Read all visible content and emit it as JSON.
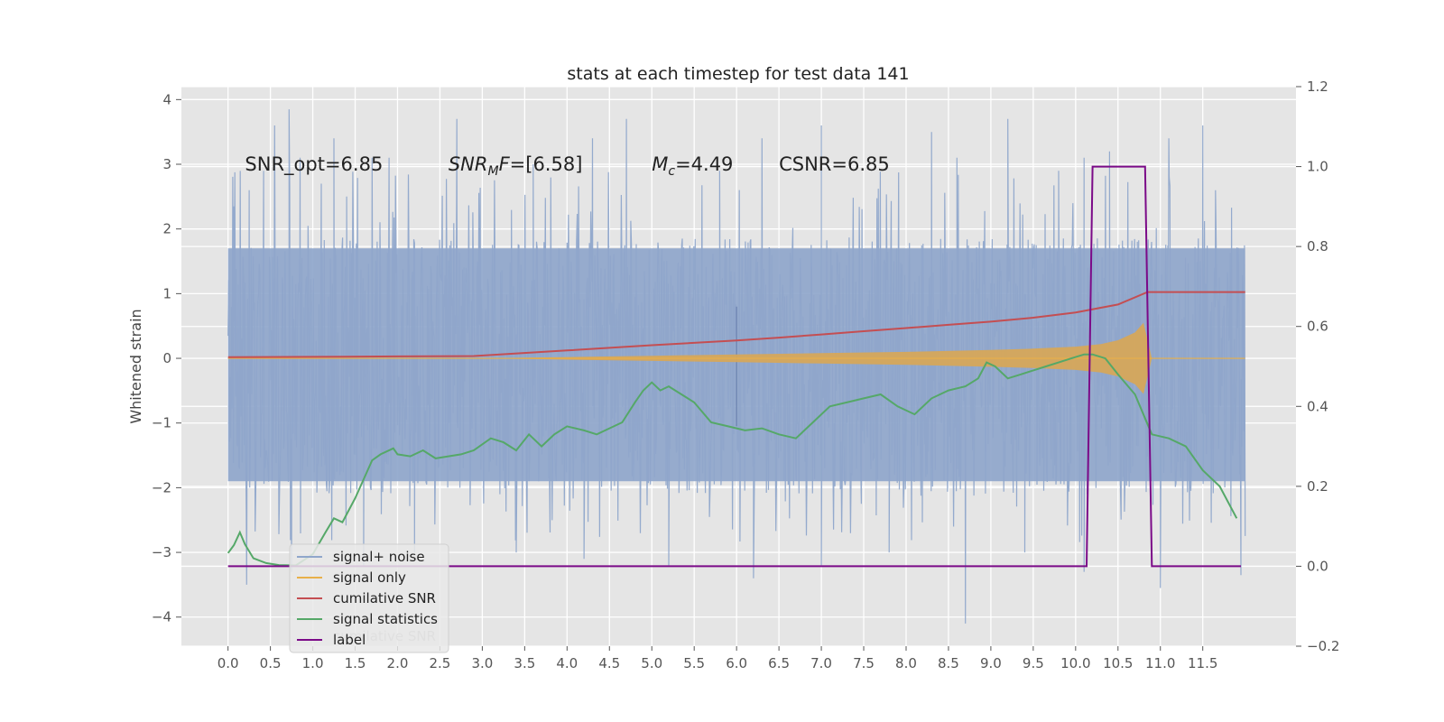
{
  "chart_data": {
    "type": "line",
    "title": "stats at each timestep for test data 141",
    "ylabel": "Whitened strain",
    "xlabel": "",
    "x_range": [
      -0.55,
      12.6
    ],
    "x_ticks": [
      0.0,
      0.5,
      1.0,
      1.5,
      2.0,
      2.5,
      3.0,
      3.5,
      4.0,
      4.5,
      5.0,
      5.5,
      6.0,
      6.5,
      7.0,
      7.5,
      8.0,
      8.5,
      9.0,
      9.5,
      10.0,
      10.5,
      11.0,
      11.5
    ],
    "x_tick_labels": [
      "0.0",
      "0.5",
      "1.0",
      "1.5",
      "2.0",
      "2.5",
      "3.0",
      "3.5",
      "4.0",
      "4.5",
      "5.0",
      "5.5",
      "6.0",
      "6.5",
      "7.0",
      "7.5",
      "8.0",
      "8.5",
      "9.0",
      "9.5",
      "10.0",
      "10.5",
      "11.0",
      "11.5"
    ],
    "y_left_range": [
      -4.45,
      4.2
    ],
    "y_left_ticks": [
      -4,
      -3,
      -2,
      -1,
      0,
      1,
      2,
      3,
      4
    ],
    "y_left_tick_labels": [
      "−4",
      "−3",
      "−2",
      "−1",
      "0",
      "1",
      "2",
      "3",
      "4"
    ],
    "y_right_range": [
      -0.2,
      1.2
    ],
    "y_right_ticks": [
      -0.2,
      0.0,
      0.2,
      0.4,
      0.6,
      0.8,
      1.0,
      1.2
    ],
    "y_right_tick_labels": [
      "−0.2",
      "0.0",
      "0.2",
      "0.4",
      "0.6",
      "0.8",
      "1.0",
      "1.2"
    ],
    "grid": true,
    "legend_position": "lower-left",
    "annotations": [
      {
        "text": "SNR_opt=6.85",
        "x": 0.2,
        "y": 3.0
      },
      {
        "text": "SNR",
        "sub": "M",
        "tail": "F=[6.58]",
        "x": 2.6,
        "y": 3.0
      },
      {
        "text": "M",
        "sub": "c",
        "tail": "=4.49",
        "x": 5.0,
        "y": 3.0
      },
      {
        "text": "CSNR=6.85",
        "x": 6.5,
        "y": 3.0
      }
    ],
    "series": [
      {
        "name": "signal+ noise",
        "axis": "left",
        "color": "#8fa6cb",
        "kind": "noise",
        "x_start": 0.0,
        "x_end": 12.0,
        "envelope": {
          "upper_typical": 1.7,
          "lower_typical": -1.9,
          "max": 3.85,
          "min": -4.1
        },
        "peaks": [
          {
            "x": 0.07,
            "y": 2.35
          },
          {
            "x": 0.25,
            "y": 2.6
          },
          {
            "x": 0.42,
            "y": 2.9
          },
          {
            "x": 0.55,
            "y": 3.6
          },
          {
            "x": 0.72,
            "y": 3.85
          },
          {
            "x": 0.85,
            "y": 3.1
          },
          {
            "x": 1.1,
            "y": 2.7
          },
          {
            "x": 1.25,
            "y": 3.4
          },
          {
            "x": 1.4,
            "y": 2.5
          },
          {
            "x": 1.7,
            "y": 3.1
          },
          {
            "x": 1.9,
            "y": 3.1
          },
          {
            "x": 2.7,
            "y": 3.7
          },
          {
            "x": 3.6,
            "y": 3.0
          },
          {
            "x": 4.3,
            "y": 3.4
          },
          {
            "x": 4.7,
            "y": 3.7
          },
          {
            "x": 5.8,
            "y": 2.9
          },
          {
            "x": 6.3,
            "y": 3.4
          },
          {
            "x": 7.0,
            "y": 3.6
          },
          {
            "x": 8.3,
            "y": 3.5
          },
          {
            "x": 8.6,
            "y": 3.1
          },
          {
            "x": 9.2,
            "y": 3.7
          },
          {
            "x": 9.8,
            "y": 2.9
          },
          {
            "x": 10.1,
            "y": 3.1
          },
          {
            "x": 10.4,
            "y": 3.2
          },
          {
            "x": 11.1,
            "y": 3.4
          },
          {
            "x": 11.5,
            "y": 3.6
          },
          {
            "x": 11.65,
            "y": 2.6
          }
        ],
        "troughs": [
          {
            "x": 0.22,
            "y": -3.5
          },
          {
            "x": 0.75,
            "y": -3.3
          },
          {
            "x": 1.6,
            "y": -3.2
          },
          {
            "x": 2.2,
            "y": -3.0
          },
          {
            "x": 3.4,
            "y": -3.0
          },
          {
            "x": 4.2,
            "y": -3.1
          },
          {
            "x": 5.2,
            "y": -3.2
          },
          {
            "x": 6.2,
            "y": -3.4
          },
          {
            "x": 7.0,
            "y": -3.2
          },
          {
            "x": 7.8,
            "y": -3.0
          },
          {
            "x": 8.7,
            "y": -4.1
          },
          {
            "x": 9.4,
            "y": -3.0
          },
          {
            "x": 10.1,
            "y": -3.3
          },
          {
            "x": 11.0,
            "y": -3.55
          },
          {
            "x": 11.95,
            "y": -3.35
          }
        ],
        "spike": {
          "x": 6.0,
          "y_min": -1.05,
          "y_max": 0.8
        }
      },
      {
        "name": "signal only",
        "axis": "left",
        "color": "#e8b04a",
        "fill_color": "#d6a75a",
        "kind": "chirp",
        "x": [
          0.0,
          3.0,
          4.0,
          5.0,
          6.0,
          7.0,
          8.0,
          9.0,
          9.5,
          10.0,
          10.3,
          10.5,
          10.7,
          10.8,
          10.9,
          12.0
        ],
        "amplitude": [
          0.0,
          0.0,
          0.02,
          0.04,
          0.06,
          0.08,
          0.1,
          0.13,
          0.15,
          0.18,
          0.22,
          0.28,
          0.4,
          0.55,
          0.0,
          0.0
        ]
      },
      {
        "name": "cumilative SNR",
        "axis": "right",
        "color": "#c44e52",
        "x": [
          0.0,
          1.0,
          2.0,
          2.9,
          4.0,
          5.0,
          6.0,
          6.5,
          7.0,
          7.5,
          8.0,
          8.5,
          9.0,
          9.5,
          10.0,
          10.5,
          10.85,
          12.0
        ],
        "y": [
          0.523,
          0.524,
          0.525,
          0.526,
          0.54,
          0.553,
          0.565,
          0.572,
          0.58,
          0.588,
          0.596,
          0.604,
          0.612,
          0.622,
          0.635,
          0.655,
          0.686,
          0.686
        ]
      },
      {
        "name": "signal statistics",
        "axis": "right",
        "color": "#55a868",
        "x": [
          0.0,
          0.07,
          0.14,
          0.2,
          0.3,
          0.45,
          0.6,
          0.8,
          1.0,
          1.15,
          1.25,
          1.35,
          1.5,
          1.7,
          1.8,
          1.95,
          2.0,
          2.15,
          2.3,
          2.45,
          2.6,
          2.75,
          2.9,
          3.1,
          3.25,
          3.4,
          3.55,
          3.7,
          3.85,
          4.0,
          4.2,
          4.35,
          4.5,
          4.65,
          4.8,
          4.9,
          5.0,
          5.1,
          5.2,
          5.35,
          5.5,
          5.7,
          5.9,
          6.1,
          6.3,
          6.5,
          6.7,
          6.9,
          7.1,
          7.3,
          7.5,
          7.7,
          7.9,
          8.1,
          8.3,
          8.5,
          8.7,
          8.85,
          8.95,
          9.05,
          9.2,
          9.35,
          9.5,
          9.65,
          9.8,
          9.95,
          10.1,
          10.2,
          10.35,
          10.5,
          10.7,
          10.9,
          11.1,
          11.3,
          11.5,
          11.7,
          11.9
        ],
        "y": [
          0.033,
          0.053,
          0.085,
          0.055,
          0.02,
          0.008,
          0.003,
          0.002,
          0.03,
          0.085,
          0.12,
          0.11,
          0.17,
          0.265,
          0.28,
          0.295,
          0.28,
          0.275,
          0.29,
          0.27,
          0.275,
          0.28,
          0.29,
          0.32,
          0.31,
          0.29,
          0.33,
          0.3,
          0.33,
          0.35,
          0.34,
          0.33,
          0.345,
          0.36,
          0.41,
          0.44,
          0.46,
          0.44,
          0.45,
          0.43,
          0.41,
          0.36,
          0.35,
          0.34,
          0.345,
          0.33,
          0.32,
          0.36,
          0.4,
          0.41,
          0.42,
          0.43,
          0.4,
          0.38,
          0.42,
          0.44,
          0.45,
          0.47,
          0.51,
          0.5,
          0.47,
          0.48,
          0.49,
          0.5,
          0.51,
          0.52,
          0.53,
          0.53,
          0.52,
          0.48,
          0.43,
          0.33,
          0.32,
          0.3,
          0.24,
          0.2,
          0.12
        ]
      },
      {
        "name": "label",
        "axis": "right",
        "color": "#7b0a88",
        "x": [
          0.0,
          10.13,
          10.2,
          10.82,
          10.9,
          11.95
        ],
        "y": [
          0.0,
          0.0,
          1.0,
          1.0,
          0.0,
          0.0
        ]
      }
    ],
    "legend": [
      "signal+ noise",
      "signal only",
      "cumilative SNR",
      "signal statistics",
      "label"
    ],
    "legend_hidden_text": "cumilative SNR"
  }
}
